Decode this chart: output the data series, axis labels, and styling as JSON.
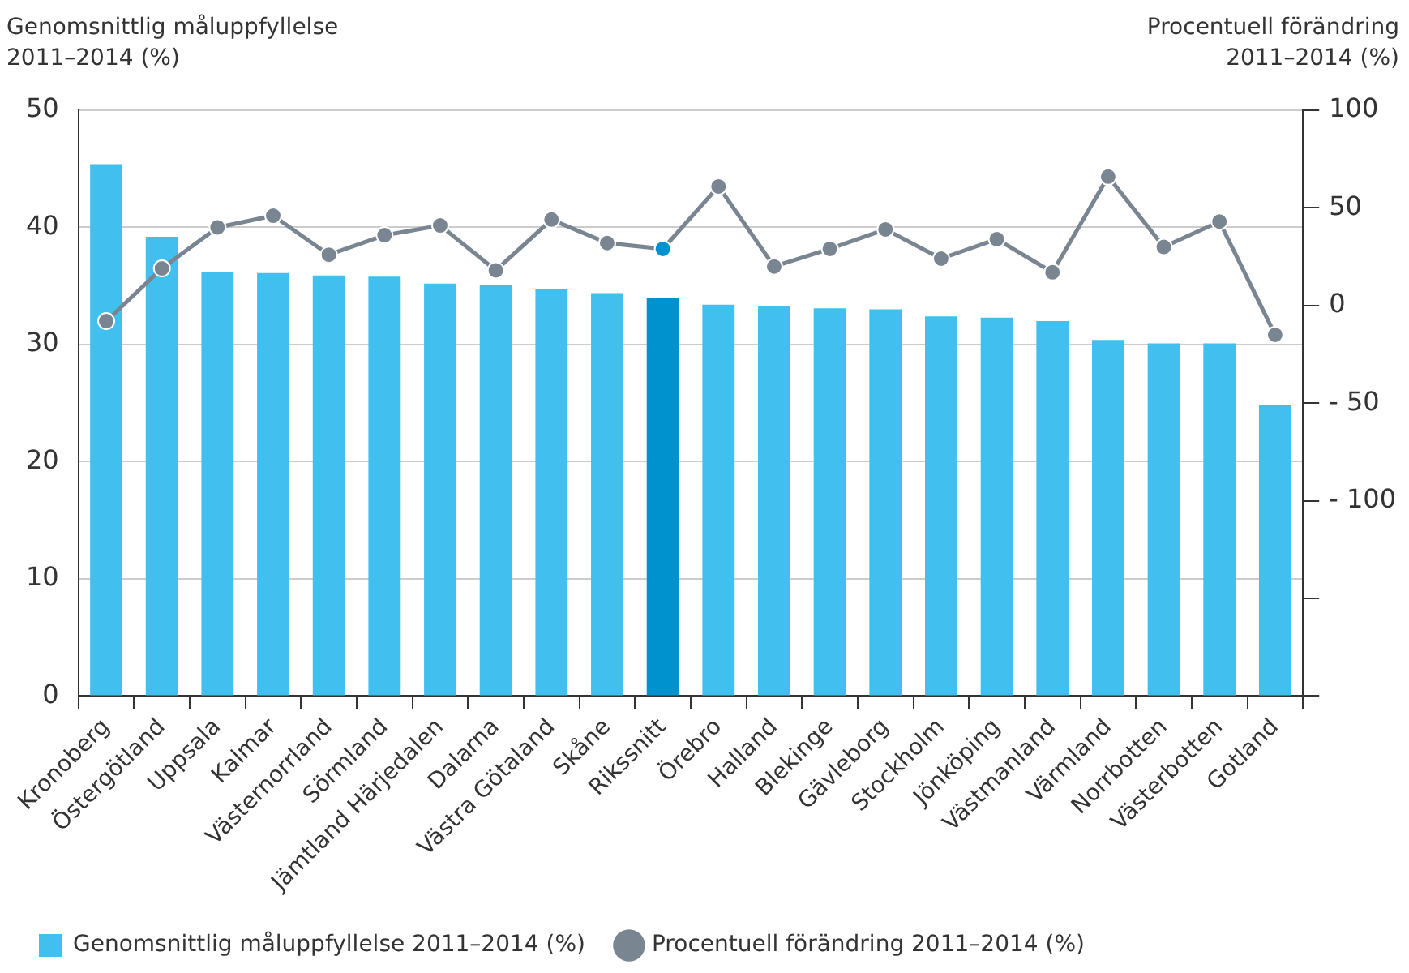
{
  "chart_data": {
    "type": "bar",
    "ylabel": "Genomsnittlig måluppfyllelse\n2011–2014 (%)",
    "y2label": "Procentuell förändring\n2011–2014 (%)",
    "categories": [
      "Kronoberg",
      "Östergötland",
      "Uppsala",
      "Kalmar",
      "Västernorrland",
      "Sörmland",
      "Jämtland Härjedalen",
      "Dalarna",
      "Västra Götaland",
      "Skåne",
      "Rikssnitt",
      "Örebro",
      "Halland",
      "Blekinge",
      "Gävleborg",
      "Stockholm",
      "Jönköping",
      "Västmanland",
      "Värmland",
      "Norrbotten",
      "Västerbotten",
      "Gotland"
    ],
    "series": [
      {
        "name": "Genomsnittlig måluppfyllelse 2011–2014 (%)",
        "color": "#41bfee",
        "colors": [
          "#41bfee",
          "#41bfee",
          "#41bfee",
          "#41bfee",
          "#41bfee",
          "#41bfee",
          "#41bfee",
          "#41bfee",
          "#41bfee",
          "#41bfee",
          "#0091cf",
          "#41bfee",
          "#41bfee",
          "#41bfee",
          "#41bfee",
          "#41bfee",
          "#41bfee",
          "#41bfee",
          "#41bfee",
          "#41bfee",
          "#41bfee",
          "#41bfee"
        ],
        "values": [
          45.4,
          39.2,
          36.2,
          36.1,
          35.9,
          35.8,
          35.2,
          35.1,
          34.7,
          34.4,
          34.0,
          33.4,
          33.3,
          33.1,
          33.0,
          32.4,
          32.3,
          32.0,
          30.4,
          30.1,
          30.1,
          24.8
        ]
      },
      {
        "name": "Procentuell förändring 2011–2014 (%)",
        "type": "line",
        "axis": "y2",
        "color": "#7a8592",
        "colors": [
          "#7a8592",
          "#7a8592",
          "#7a8592",
          "#7a8592",
          "#7a8592",
          "#7a8592",
          "#7a8592",
          "#7a8592",
          "#7a8592",
          "#7a8592",
          "#0091cf",
          "#7a8592",
          "#7a8592",
          "#7a8592",
          "#7a8592",
          "#7a8592",
          "#7a8592",
          "#7a8592",
          "#7a8592",
          "#7a8592",
          "#7a8592",
          "#7a8592"
        ],
        "values": [
          -8,
          19,
          40,
          46,
          26,
          36,
          41,
          18,
          44,
          32,
          29,
          61,
          20,
          29,
          39,
          24,
          34,
          17,
          66,
          30,
          43,
          -15
        ]
      }
    ],
    "ylim": [
      0,
      50
    ],
    "yticks": [
      0,
      10,
      20,
      30,
      40,
      50
    ],
    "y2lim": [
      -200,
      100
    ],
    "y2ticks": [
      {
        "value": -200,
        "label": null
      },
      {
        "value": -150,
        "label": null
      },
      {
        "value": -100,
        "label": "- 100"
      },
      {
        "value": -50,
        "label": "- 50"
      },
      0,
      50,
      100
    ],
    "grid": "y",
    "legend": "bottom",
    "marker": "circle"
  }
}
